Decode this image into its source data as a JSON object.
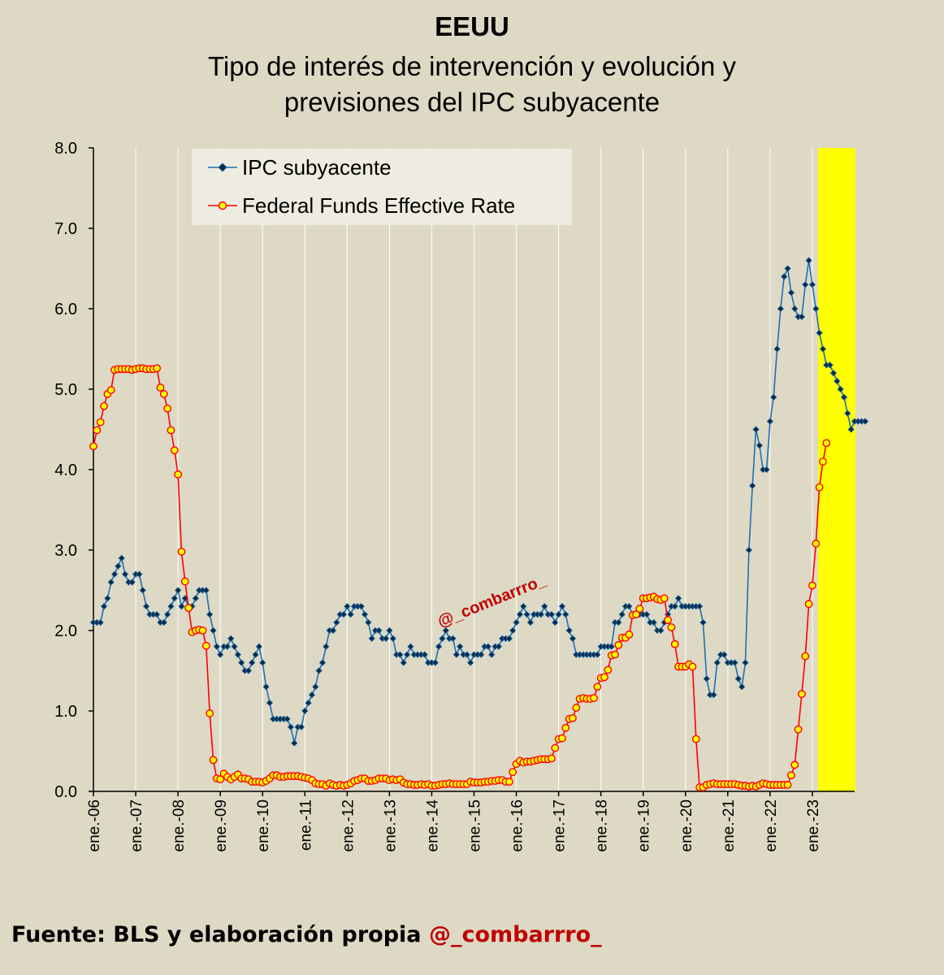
{
  "header": {
    "title": "EEUU",
    "subtitle_line1": "Tipo de interés de intervención y evolución y",
    "subtitle_line2": "previsiones del IPC subyacente"
  },
  "footer": {
    "source": "Fuente: BLS y elaboración propia ",
    "handle": "@_combarrro_"
  },
  "watermark": "@_combarrro_",
  "chart_data": {
    "type": "line",
    "title": "Tipo de interés de intervención y evolución y previsiones del IPC subyacente",
    "ylim": [
      0,
      8
    ],
    "yticks": [
      "0.0",
      "1.0",
      "2.0",
      "3.0",
      "4.0",
      "5.0",
      "6.0",
      "7.0",
      "8.0"
    ],
    "x_start": "2006-01",
    "months": 216,
    "xtick_labels": [
      "ene.-06",
      "ene.-07",
      "ene.-08",
      "ene.-09",
      "ene.-10",
      "ene.-11",
      "ene.-12",
      "ene.-13",
      "ene.-14",
      "ene.-15",
      "ene.-16",
      "ene.-17",
      "ene.-18",
      "ene.-19",
      "ene.-20",
      "ene.-21",
      "ene.-22",
      "ene.-23"
    ],
    "grid": "vertical",
    "legend": "top-left",
    "forecast_shading": {
      "from": "2023-03",
      "to": "2023-12",
      "color": "#ffff00"
    },
    "series": [
      {
        "name": "IPC subyacente",
        "color": "#1f6fb2",
        "marker": "diamond",
        "start": "2006-01",
        "values": [
          2.1,
          2.1,
          2.1,
          2.3,
          2.4,
          2.6,
          2.7,
          2.8,
          2.9,
          2.7,
          2.6,
          2.6,
          2.7,
          2.7,
          2.5,
          2.3,
          2.2,
          2.2,
          2.2,
          2.1,
          2.1,
          2.2,
          2.3,
          2.4,
          2.5,
          2.3,
          2.4,
          2.3,
          2.3,
          2.4,
          2.5,
          2.5,
          2.5,
          2.2,
          2.0,
          1.8,
          1.7,
          1.8,
          1.8,
          1.9,
          1.8,
          1.7,
          1.6,
          1.5,
          1.5,
          1.6,
          1.7,
          1.8,
          1.6,
          1.3,
          1.1,
          0.9,
          0.9,
          0.9,
          0.9,
          0.9,
          0.8,
          0.6,
          0.8,
          0.8,
          1.0,
          1.1,
          1.2,
          1.3,
          1.5,
          1.6,
          1.8,
          2.0,
          2.0,
          2.1,
          2.2,
          2.2,
          2.3,
          2.2,
          2.3,
          2.3,
          2.3,
          2.2,
          2.1,
          1.9,
          2.0,
          2.0,
          1.9,
          1.9,
          2.0,
          1.9,
          1.7,
          1.7,
          1.6,
          1.7,
          1.8,
          1.7,
          1.7,
          1.7,
          1.7,
          1.6,
          1.6,
          1.6,
          1.8,
          1.9,
          2.0,
          1.9,
          1.9,
          1.7,
          1.8,
          1.7,
          1.7,
          1.6,
          1.7,
          1.7,
          1.7,
          1.8,
          1.8,
          1.7,
          1.8,
          1.8,
          1.9,
          1.9,
          1.9,
          2.0,
          2.1,
          2.2,
          2.3,
          2.2,
          2.1,
          2.2,
          2.2,
          2.2,
          2.3,
          2.2,
          2.2,
          2.1,
          2.2,
          2.3,
          2.2,
          2.0,
          1.9,
          1.7,
          1.7,
          1.7,
          1.7,
          1.7,
          1.7,
          1.7,
          1.8,
          1.8,
          1.8,
          1.8,
          2.1,
          2.1,
          2.2,
          2.3,
          2.3,
          2.2,
          2.2,
          2.2,
          2.2,
          2.2,
          2.1,
          2.1,
          2.0,
          2.0,
          2.1,
          2.2,
          2.3,
          2.3,
          2.4,
          2.3,
          2.3,
          2.3,
          2.3,
          2.3,
          2.3,
          2.1,
          1.4,
          1.2,
          1.2,
          1.6,
          1.7,
          1.7,
          1.6,
          1.6,
          1.6,
          1.4,
          1.3,
          1.6,
          3.0,
          3.8,
          4.5,
          4.3,
          4.0,
          4.0,
          4.6,
          4.9,
          5.5,
          6.0,
          6.4,
          6.5,
          6.2,
          6.0,
          5.9,
          5.9,
          6.3,
          6.6,
          6.3,
          6.0,
          5.7,
          5.5,
          5.3,
          5.3,
          5.2,
          5.1,
          5.0,
          4.9,
          4.7,
          4.5,
          4.6,
          4.6,
          4.6,
          4.6
        ]
      },
      {
        "name": "Federal Funds Effective Rate",
        "color": "#ff0000",
        "marker": "circle",
        "start": "2006-01",
        "values": [
          4.29,
          4.49,
          4.59,
          4.79,
          4.94,
          4.99,
          5.24,
          5.25,
          5.25,
          5.25,
          5.25,
          5.24,
          5.25,
          5.26,
          5.26,
          5.25,
          5.25,
          5.25,
          5.26,
          5.02,
          4.94,
          4.76,
          4.49,
          4.24,
          3.94,
          2.98,
          2.61,
          2.28,
          1.98,
          2.0,
          2.01,
          2.0,
          1.81,
          0.97,
          0.39,
          0.16,
          0.15,
          0.22,
          0.18,
          0.15,
          0.18,
          0.21,
          0.16,
          0.16,
          0.15,
          0.12,
          0.12,
          0.12,
          0.11,
          0.13,
          0.16,
          0.2,
          0.2,
          0.18,
          0.18,
          0.19,
          0.19,
          0.19,
          0.19,
          0.18,
          0.17,
          0.16,
          0.14,
          0.1,
          0.09,
          0.09,
          0.07,
          0.1,
          0.08,
          0.07,
          0.08,
          0.07,
          0.08,
          0.1,
          0.13,
          0.14,
          0.16,
          0.16,
          0.13,
          0.13,
          0.14,
          0.16,
          0.16,
          0.16,
          0.14,
          0.15,
          0.14,
          0.15,
          0.11,
          0.09,
          0.09,
          0.08,
          0.08,
          0.09,
          0.08,
          0.09,
          0.07,
          0.07,
          0.08,
          0.09,
          0.09,
          0.1,
          0.09,
          0.09,
          0.09,
          0.09,
          0.09,
          0.12,
          0.11,
          0.11,
          0.11,
          0.12,
          0.12,
          0.13,
          0.13,
          0.14,
          0.14,
          0.12,
          0.12,
          0.24,
          0.34,
          0.38,
          0.36,
          0.37,
          0.37,
          0.38,
          0.39,
          0.4,
          0.4,
          0.4,
          0.41,
          0.54,
          0.65,
          0.66,
          0.79,
          0.9,
          0.91,
          1.04,
          1.15,
          1.16,
          1.15,
          1.15,
          1.16,
          1.3,
          1.41,
          1.42,
          1.51,
          1.69,
          1.7,
          1.82,
          1.91,
          1.91,
          1.95,
          2.19,
          2.2,
          2.27,
          2.4,
          2.4,
          2.41,
          2.42,
          2.39,
          2.38,
          2.4,
          2.13,
          2.04,
          1.83,
          1.55,
          1.55,
          1.55,
          1.58,
          1.55,
          0.65,
          0.05,
          0.05,
          0.08,
          0.09,
          0.1,
          0.09,
          0.09,
          0.09,
          0.09,
          0.09,
          0.09,
          0.08,
          0.07,
          0.07,
          0.06,
          0.07,
          0.06,
          0.08,
          0.1,
          0.09,
          0.08,
          0.08,
          0.08,
          0.08,
          0.08,
          0.08,
          0.2,
          0.33,
          0.77,
          1.21,
          1.68,
          2.33,
          2.56,
          3.08,
          3.78,
          4.1,
          4.33
        ]
      }
    ]
  }
}
